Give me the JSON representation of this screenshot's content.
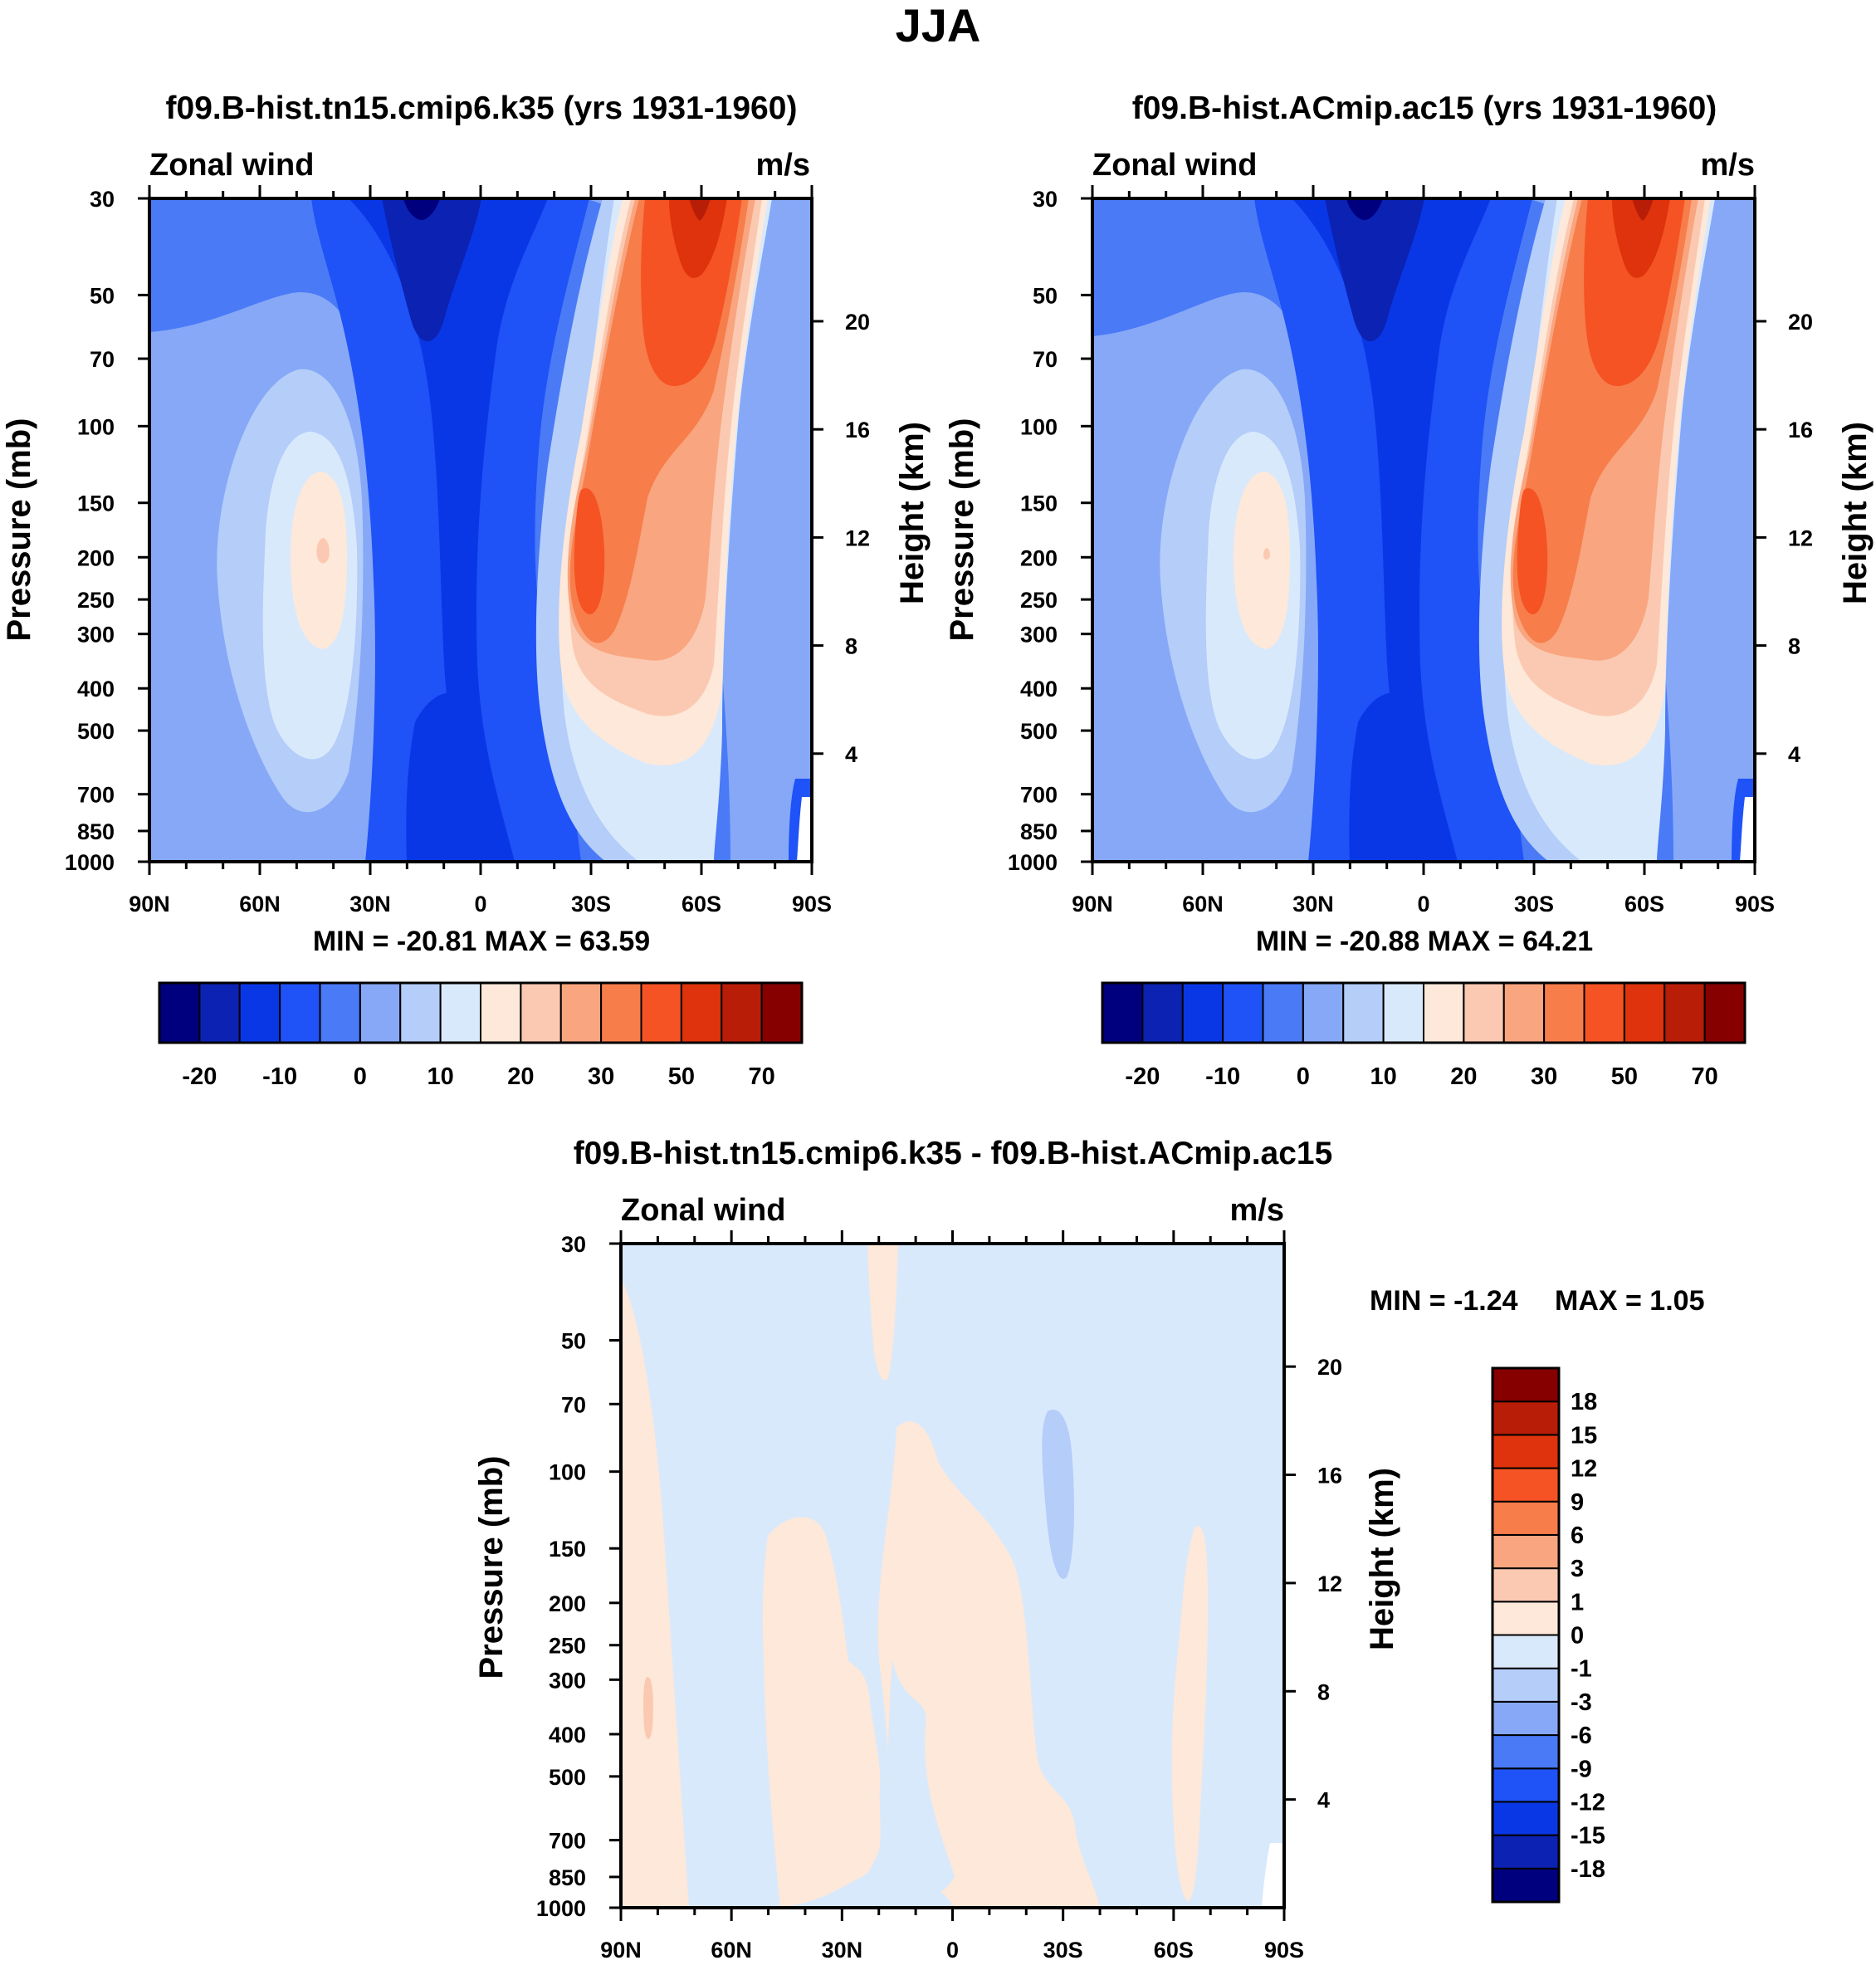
{
  "figure": {
    "season": "JJA"
  },
  "colors": {
    "main_levels": [
      "#00007f",
      "#0b22b3",
      "#0a37e6",
      "#1f52f7",
      "#4a7af6",
      "#86a8f7",
      "#b4cdf9",
      "#d9e9fc",
      "#fde8d9",
      "#fbc9b1",
      "#f9a57f",
      "#f77d4b",
      "#f55324",
      "#de330c",
      "#b81d07",
      "#860000"
    ],
    "diff_levels": [
      "#00007f",
      "#0b22b3",
      "#0a37e6",
      "#1f52f7",
      "#4a7af6",
      "#86a8f7",
      "#b4cdf9",
      "#d9e9fc",
      "#fde8d9",
      "#fbc9b1",
      "#f9a57f",
      "#f77d4b",
      "#f55324",
      "#de330c",
      "#b81d07",
      "#860000"
    ]
  },
  "panels": {
    "p1": {
      "title": "f09.B-hist.tn15.cmip6.k35 (yrs 1931-1960)",
      "label_left": "Zonal wind",
      "label_right": "m/s",
      "stats": "MIN = -20.81  MAX =  63.59"
    },
    "p2": {
      "title": "f09.B-hist.ACmip.ac15 (yrs 1931-1960)",
      "label_left": "Zonal wind",
      "label_right": "m/s",
      "stats": "MIN = -20.88  MAX =  64.21"
    },
    "p3": {
      "title": "f09.B-hist.tn15.cmip6.k35 - f09.B-hist.ACmip.ac15",
      "label_left": "Zonal wind",
      "label_right": "m/s",
      "stats_min": "MIN =  -1.24",
      "stats_max": "MAX =    1.05"
    }
  },
  "colorbars": {
    "main": {
      "labels": [
        "-20",
        "-10",
        "0",
        "10",
        "20",
        "30",
        "50",
        "70"
      ]
    },
    "diff": {
      "labels": [
        "18",
        "15",
        "12",
        "9",
        "6",
        "3",
        "1",
        "0",
        "-1",
        "-3",
        "-6",
        "-9",
        "-12",
        "-15",
        "-18"
      ]
    }
  },
  "chart_data": [
    {
      "type": "heatmap",
      "title": "f09.B-hist.tn15.cmip6.k35 (yrs 1931-1960)",
      "variable": "Zonal wind",
      "units": "m/s",
      "x": [
        "90N",
        "60N",
        "30N",
        "0",
        "30S",
        "60S",
        "90S"
      ],
      "x_range": [
        90,
        -90
      ],
      "y_ticks": [
        30,
        50,
        70,
        100,
        150,
        200,
        250,
        300,
        400,
        500,
        700,
        850,
        1000
      ],
      "y_range": [
        30,
        1000
      ],
      "ylabel": "Pressure (mb)",
      "y2_ticks": [
        20,
        16,
        12,
        8,
        4
      ],
      "y2label": "Height (km)",
      "levels": [
        -25,
        -20,
        -15,
        -10,
        -5,
        0,
        5,
        10,
        15,
        20,
        25,
        30,
        40,
        50,
        60,
        70,
        80
      ],
      "stats": {
        "min": -20.81,
        "max": 63.59
      }
    },
    {
      "type": "heatmap",
      "title": "f09.B-hist.ACmip.ac15 (yrs 1931-1960)",
      "variable": "Zonal wind",
      "units": "m/s",
      "x": [
        "90N",
        "60N",
        "30N",
        "0",
        "30S",
        "60S",
        "90S"
      ],
      "x_range": [
        90,
        -90
      ],
      "y_ticks": [
        30,
        50,
        70,
        100,
        150,
        200,
        250,
        300,
        400,
        500,
        700,
        850,
        1000
      ],
      "y_range": [
        30,
        1000
      ],
      "ylabel": "Pressure (mb)",
      "y2_ticks": [
        20,
        16,
        12,
        8,
        4
      ],
      "y2label": "Height (km)",
      "levels": [
        -25,
        -20,
        -15,
        -10,
        -5,
        0,
        5,
        10,
        15,
        20,
        25,
        30,
        40,
        50,
        60,
        70,
        80
      ],
      "stats": {
        "min": -20.88,
        "max": 64.21
      }
    },
    {
      "type": "heatmap",
      "title": "f09.B-hist.tn15.cmip6.k35 - f09.B-hist.ACmip.ac15",
      "variable": "Zonal wind",
      "units": "m/s",
      "x": [
        "90N",
        "60N",
        "30N",
        "0",
        "30S",
        "60S",
        "90S"
      ],
      "x_range": [
        90,
        -90
      ],
      "y_ticks": [
        30,
        50,
        70,
        100,
        150,
        200,
        250,
        300,
        400,
        500,
        700,
        850,
        1000
      ],
      "y_range": [
        30,
        1000
      ],
      "ylabel": "Pressure (mb)",
      "y2_ticks": [
        20,
        16,
        12,
        8,
        4
      ],
      "y2label": "Height (km)",
      "levels": [
        -18,
        -15,
        -12,
        -9,
        -6,
        -3,
        -1,
        0,
        1,
        3,
        6,
        9,
        12,
        15,
        18
      ],
      "stats": {
        "min": -1.24,
        "max": 1.05
      }
    }
  ]
}
